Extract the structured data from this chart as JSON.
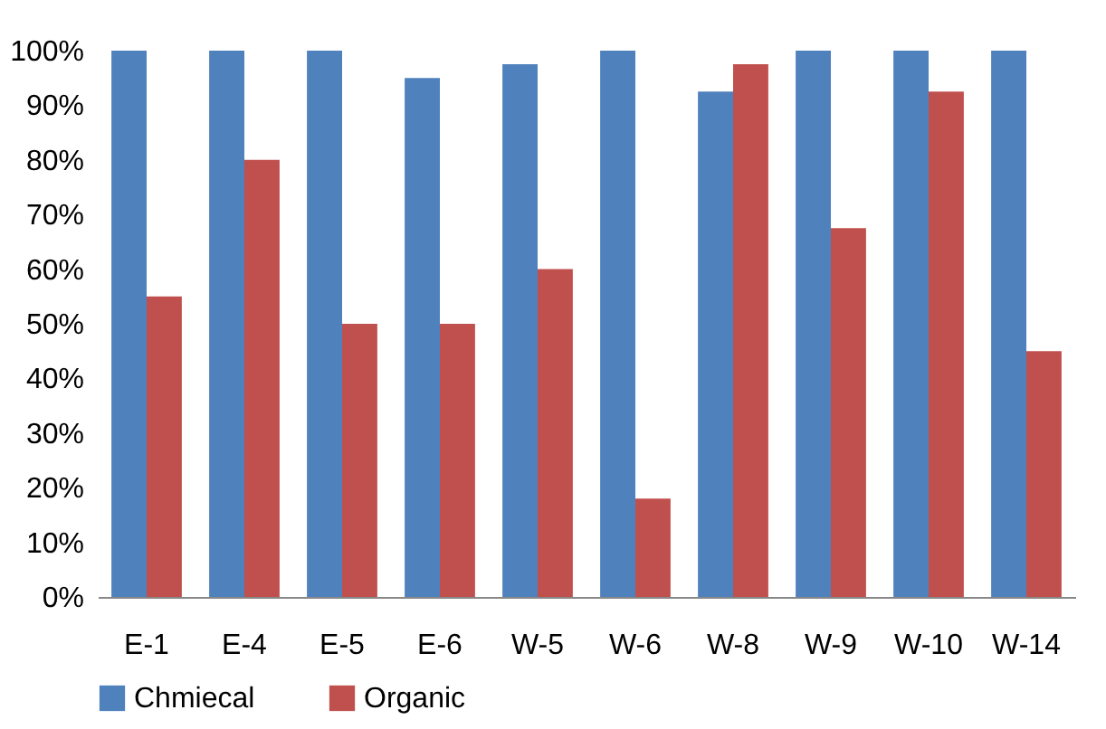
{
  "chart_data": {
    "type": "bar",
    "categories": [
      "E-1",
      "E-4",
      "E-5",
      "E-6",
      "W-5",
      "W-6",
      "W-8",
      "W-9",
      "W-10",
      "W-14"
    ],
    "series": [
      {
        "name": "Chmiecal",
        "color": "#4f81bd",
        "values": [
          100,
          100,
          100,
          95,
          97.5,
          100,
          92.5,
          100,
          100,
          100
        ]
      },
      {
        "name": "Organic",
        "color": "#c0504d",
        "values": [
          55,
          80,
          50,
          50,
          60,
          18,
          97.5,
          67.5,
          92.5,
          45
        ]
      }
    ],
    "ylim": [
      0,
      100
    ],
    "yticks": [
      {
        "value": 0,
        "label": "0%"
      },
      {
        "value": 10,
        "label": "10%"
      },
      {
        "value": 20,
        "label": "20%"
      },
      {
        "value": 30,
        "label": "30%"
      },
      {
        "value": 40,
        "label": "40%"
      },
      {
        "value": 50,
        "label": "50%"
      },
      {
        "value": 60,
        "label": "60%"
      },
      {
        "value": 70,
        "label": "70%"
      },
      {
        "value": 80,
        "label": "80%"
      },
      {
        "value": 90,
        "label": "90%"
      },
      {
        "value": 100,
        "label": "100%"
      }
    ],
    "legend": "bottom"
  }
}
